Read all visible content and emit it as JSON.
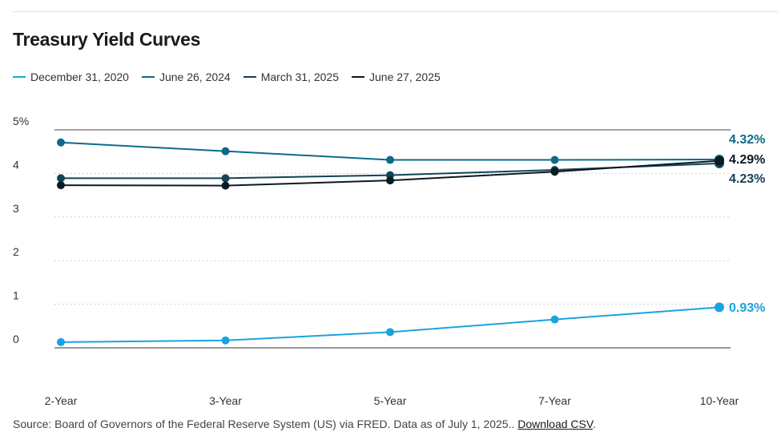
{
  "chart_data": {
    "type": "line",
    "title": "Treasury Yield Curves",
    "categories": [
      "2-Year",
      "3-Year",
      "5-Year",
      "7-Year",
      "10-Year"
    ],
    "y_tick_labels": [
      "5%",
      "4",
      "3",
      "2",
      "1",
      "0"
    ],
    "ylim": [
      0,
      5
    ],
    "grid": true,
    "legend_position": "top-left",
    "series": [
      {
        "name": "December 31, 2020",
        "color": "#1aa3e0",
        "values": [
          0.13,
          0.17,
          0.36,
          0.65,
          0.93
        ],
        "end_label": "0.93%"
      },
      {
        "name": "June 26, 2024",
        "color": "#0e6a8c",
        "values": [
          4.71,
          4.51,
          4.31,
          4.31,
          4.32
        ],
        "end_label": "4.32%"
      },
      {
        "name": "March 31, 2025",
        "color": "#124456",
        "values": [
          3.89,
          3.89,
          3.96,
          4.08,
          4.23
        ],
        "end_label": "4.23%"
      },
      {
        "name": "June 27, 2025",
        "color": "#0b1a24",
        "values": [
          3.73,
          3.72,
          3.84,
          4.04,
          4.29
        ],
        "end_label": "4.29%"
      }
    ]
  },
  "source": {
    "text": "Source: Board of Governors of the Federal Reserve System (US) via FRED. Data as of July 1, 2025..",
    "link_label": "Download CSV",
    "trailing": "."
  }
}
